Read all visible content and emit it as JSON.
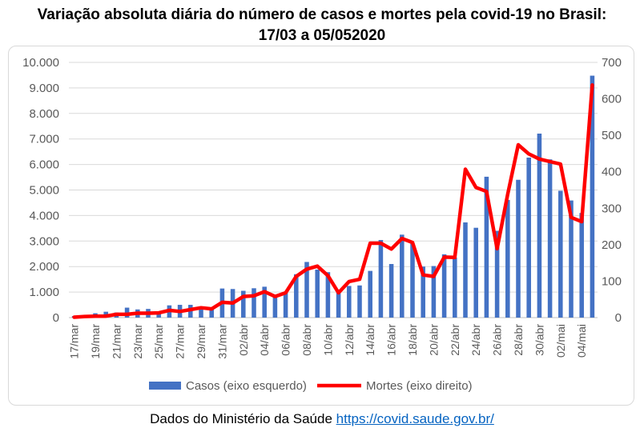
{
  "title_line1": "Variação absoluta diária do número de casos e mortes pela covid-19 no Brasil:",
  "title_line2": "17/03 a 05/052020",
  "footer_text": "Dados do Ministério da Saúde ",
  "footer_link": "https://covid.saude.gov.br/",
  "chart_data": {
    "type": "bar+line",
    "categories": [
      "17/mar",
      "18/mar",
      "19/mar",
      "20/mar",
      "21/mar",
      "22/mar",
      "23/mar",
      "24/mar",
      "25/mar",
      "26/mar",
      "27/mar",
      "28/mar",
      "29/mar",
      "30/mar",
      "31/mar",
      "01/abr",
      "02/abr",
      "03/abr",
      "04/abr",
      "05/abr",
      "06/abr",
      "07/abr",
      "08/abr",
      "09/abr",
      "10/abr",
      "11/abr",
      "12/abr",
      "13/abr",
      "14/abr",
      "15/abr",
      "16/abr",
      "17/abr",
      "18/abr",
      "19/abr",
      "20/abr",
      "21/abr",
      "22/abr",
      "23/abr",
      "24/abr",
      "25/abr",
      "26/abr",
      "27/abr",
      "28/abr",
      "29/abr",
      "30/abr",
      "01/mai",
      "02/mai",
      "03/mai",
      "04/mai",
      "05/mai"
    ],
    "x_tick_labels": [
      "17/mar",
      "19/mar",
      "21/mar",
      "23/mar",
      "25/mar",
      "27/mar",
      "29/mar",
      "31/mar",
      "02/abr",
      "04/abr",
      "06/abr",
      "08/abr",
      "10/abr",
      "12/abr",
      "14/abr",
      "16/abr",
      "18/abr",
      "20/abr",
      "22/abr",
      "24/abr",
      "26/abr",
      "28/abr",
      "30/abr",
      "02/mai",
      "04/mai"
    ],
    "series": [
      {
        "name": "Casos (eixo esquerdo)",
        "type": "bar",
        "axis": "left",
        "color": "#4472c4",
        "values": [
          60,
          100,
          170,
          230,
          200,
          390,
          320,
          340,
          230,
          480,
          500,
          500,
          350,
          330,
          1140,
          1120,
          1050,
          1150,
          1210,
          850,
          1000,
          1700,
          2180,
          1880,
          1780,
          1100,
          1240,
          1260,
          1830,
          3040,
          2100,
          3250,
          2900,
          2000,
          2020,
          2480,
          2350,
          3730,
          3520,
          5520,
          3400,
          4610,
          5400,
          6270,
          7210,
          6200,
          4970,
          4590,
          4100,
          9480
        ]
      },
      {
        "name": "Mortes (eixo direito)",
        "type": "line",
        "axis": "right",
        "color": "#ff0000",
        "values": [
          1,
          3,
          4,
          4,
          9,
          9,
          12,
          12,
          13,
          20,
          17,
          22,
          27,
          24,
          42,
          40,
          58,
          60,
          71,
          58,
          68,
          113,
          133,
          141,
          115,
          68,
          99,
          105,
          204,
          204,
          188,
          217,
          206,
          117,
          113,
          166,
          165,
          407,
          357,
          346,
          189,
          338,
          474,
          449,
          435,
          428,
          421,
          275,
          263,
          638
        ]
      }
    ],
    "left_axis": {
      "min": 0,
      "max": 10000,
      "step": 1000,
      "tick_labels": [
        "0",
        "1.000",
        "2.000",
        "3.000",
        "4.000",
        "5.000",
        "6.000",
        "7.000",
        "8.000",
        "9.000",
        "10.000"
      ]
    },
    "right_axis": {
      "min": 0,
      "max": 700,
      "step": 100,
      "tick_labels": [
        "0",
        "100",
        "200",
        "300",
        "400",
        "500",
        "600",
        "700"
      ]
    },
    "grid": true,
    "legend_position": "bottom"
  }
}
